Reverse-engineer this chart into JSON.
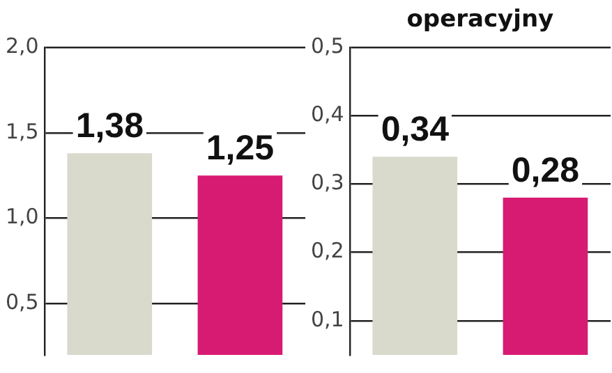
{
  "chart_data": [
    {
      "type": "bar",
      "categories": [
        null,
        null
      ],
      "values": [
        1.38,
        1.25
      ],
      "colors": [
        "#d9d9cc",
        "#d81b72"
      ],
      "value_labels": [
        "1,38",
        "1,25"
      ],
      "ylim": [
        0.2,
        2.0
      ],
      "yticks": [
        {
          "value": 0.5,
          "label": "0,5"
        },
        {
          "value": 1.0,
          "label": "1,0"
        },
        {
          "value": 1.5,
          "label": "1,5"
        },
        {
          "value": 2.0,
          "label": "2,0"
        }
      ],
      "grid": "y",
      "legend": false
    },
    {
      "type": "bar",
      "title": "operacyjny",
      "categories": [
        null,
        null
      ],
      "values": [
        0.34,
        0.28
      ],
      "colors": [
        "#d9d9cc",
        "#d81b72"
      ],
      "value_labels": [
        "0,34",
        "0,28"
      ],
      "ylim": [
        0.05,
        0.5
      ],
      "yticks": [
        {
          "value": 0.1,
          "label": "0,1"
        },
        {
          "value": 0.2,
          "label": "0,2"
        },
        {
          "value": 0.3,
          "label": "0,3"
        },
        {
          "value": 0.4,
          "label": "0,4"
        },
        {
          "value": 0.5,
          "label": "0,5"
        }
      ],
      "grid": "y",
      "legend": false
    }
  ]
}
